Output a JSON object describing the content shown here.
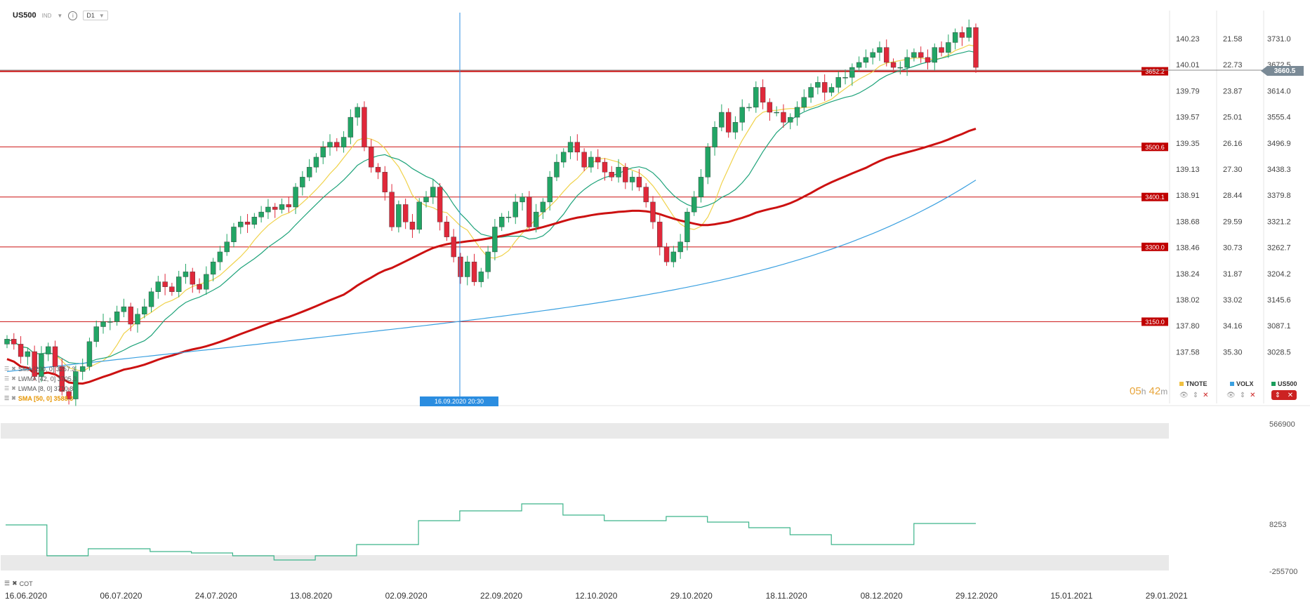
{
  "header": {
    "symbol": "US500",
    "tag": "IND",
    "timeframe": "D1"
  },
  "indicators": [
    {
      "label": "SMA  [200,  0]  3257.3",
      "active": false
    },
    {
      "label": "LWMA  [42,  0]  3705.3",
      "active": false
    },
    {
      "label": "LWMA  [8,  0]  3710.8",
      "active": false
    },
    {
      "label": "SMA  [50,  0]  3588.3",
      "active": true
    }
  ],
  "timer": {
    "hours": "05",
    "h_unit": "h",
    "minutes": "42",
    "m_unit": "m"
  },
  "crosshair_label": "16.09.2020 20:30",
  "comparison_legend": [
    {
      "name": "TNOTE",
      "color": "#f0c040"
    },
    {
      "name": "VOLX",
      "color": "#3aa0e0"
    },
    {
      "name": "US500",
      "color": "#1a9e5c"
    }
  ],
  "cot_label": "COT",
  "colors": {
    "up": "#22a565",
    "down": "#e0283a",
    "sma50": "#cc1111",
    "sma200": "#3aa0e0",
    "lwma8": "#f0d24a",
    "lwma42": "#1ea37a",
    "cot": "#3cb48a",
    "level": "#cc1111",
    "label_bg": "#c00000"
  },
  "chart_data": {
    "type": "candlestick",
    "x_tick_labels": [
      "16.06.2020",
      "06.07.2020",
      "24.07.2020",
      "13.08.2020",
      "02.09.2020",
      "22.09.2020",
      "12.10.2020",
      "29.10.2020",
      "18.11.2020",
      "08.12.2020",
      "29.12.2020",
      "15.01.2021",
      "29.01.2021"
    ],
    "y_axis_us500": [
      "3731.0",
      "3672.5",
      "3614.0",
      "3555.4",
      "3496.9",
      "3438.3",
      "3379.8",
      "3321.2",
      "3262.7",
      "3204.2",
      "3145.6",
      "3087.1",
      "3028.5"
    ],
    "y_axis_volx": [
      "21.58",
      "22.73",
      "23.87",
      "25.01",
      "26.16",
      "27.30",
      "28.44",
      "29.59",
      "30.73",
      "31.87",
      "33.02",
      "34.16",
      "35.30"
    ],
    "y_axis_tnote": [
      "140.23",
      "140.01",
      "139.79",
      "139.57",
      "139.35",
      "139.13",
      "138.91",
      "138.68",
      "138.46",
      "138.24",
      "138.02",
      "137.80",
      "137.58"
    ],
    "ylim": [
      3000,
      3760
    ],
    "current_price": "3660.5",
    "horizontal_levels": [
      "3652.2",
      "3500.6",
      "3400.1",
      "3300.0",
      "3150.0"
    ],
    "close": [
      3115,
      3105,
      3080,
      3090,
      3040,
      3085,
      3100,
      3060,
      3010,
      2995,
      3050,
      3060,
      3110,
      3140,
      3150,
      3150,
      3170,
      3180,
      3145,
      3165,
      3180,
      3210,
      3230,
      3220,
      3210,
      3240,
      3250,
      3225,
      3215,
      3245,
      3270,
      3290,
      3310,
      3340,
      3350,
      3345,
      3360,
      3370,
      3380,
      3375,
      3385,
      3380,
      3420,
      3440,
      3460,
      3480,
      3500,
      3510,
      3500,
      3520,
      3560,
      3580,
      3500,
      3460,
      3450,
      3410,
      3340,
      3385,
      3350,
      3335,
      3390,
      3400,
      3420,
      3350,
      3320,
      3280,
      3240,
      3270,
      3230,
      3250,
      3290,
      3340,
      3360,
      3360,
      3390,
      3400,
      3340,
      3370,
      3390,
      3440,
      3470,
      3490,
      3510,
      3490,
      3460,
      3480,
      3470,
      3450,
      3440,
      3460,
      3430,
      3440,
      3420,
      3390,
      3350,
      3300,
      3270,
      3290,
      3310,
      3370,
      3400,
      3440,
      3500,
      3540,
      3570,
      3530,
      3550,
      3580,
      3580,
      3620,
      3590,
      3570,
      3570,
      3550,
      3560,
      3580,
      3600,
      3620,
      3630,
      3610,
      3620,
      3640,
      3640,
      3660,
      3670,
      3680,
      3690,
      3700,
      3670,
      3660,
      3660,
      3680,
      3690,
      3680,
      3670,
      3700,
      3690,
      3710,
      3730,
      3720,
      3740,
      3660
    ]
  }
}
